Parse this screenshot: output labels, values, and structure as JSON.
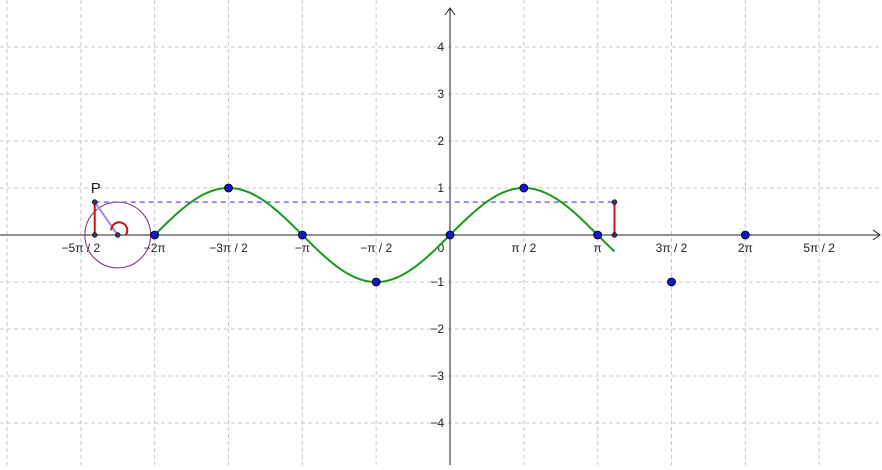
{
  "axes": {
    "x_tick_labels": [
      "−5π / 2",
      "−2π",
      "−3π / 2",
      "−π",
      "−π / 2",
      "π / 2",
      "π",
      "3π / 2",
      "2π",
      "5π / 2"
    ],
    "y_tick_labels_positive": [
      "1",
      "2",
      "3",
      "4"
    ],
    "y_tick_labels_negative": [
      "−1",
      "−2",
      "−3",
      "−4"
    ],
    "origin_label": "0"
  },
  "point_label": "P",
  "colors": {
    "curve": "#1a9a1a",
    "segment": "#cc1111",
    "dashed_line": "#7b6cf0",
    "radius": "#9b8cf5",
    "circle": "#7a2a7a",
    "point": "#1515cc",
    "point_label": "#7777ee",
    "axis": "#222222",
    "grid": "#c8c8c8"
  },
  "chart_data": {
    "type": "line",
    "function": "sin(x)",
    "xlim": [
      -8.9,
      8.7
    ],
    "ylim": [
      -4.8,
      4.9
    ],
    "curve_domain": [
      -6.2832,
      3.5
    ],
    "grid": true,
    "unit_circle_center": [
      -7.069,
      0
    ],
    "unit_circle_radius": 0.7,
    "angle_point_value": 0.7,
    "marked_points": [
      {
        "x": -6.2832,
        "y": 0
      },
      {
        "x": -4.7124,
        "y": 1
      },
      {
        "x": -3.1416,
        "y": 0
      },
      {
        "x": -1.5708,
        "y": -1
      },
      {
        "x": 0,
        "y": 0
      },
      {
        "x": 1.5708,
        "y": 1
      },
      {
        "x": 3.1416,
        "y": 0
      },
      {
        "x": 4.7124,
        "y": -1
      },
      {
        "x": 6.2832,
        "y": 0
      }
    ]
  }
}
